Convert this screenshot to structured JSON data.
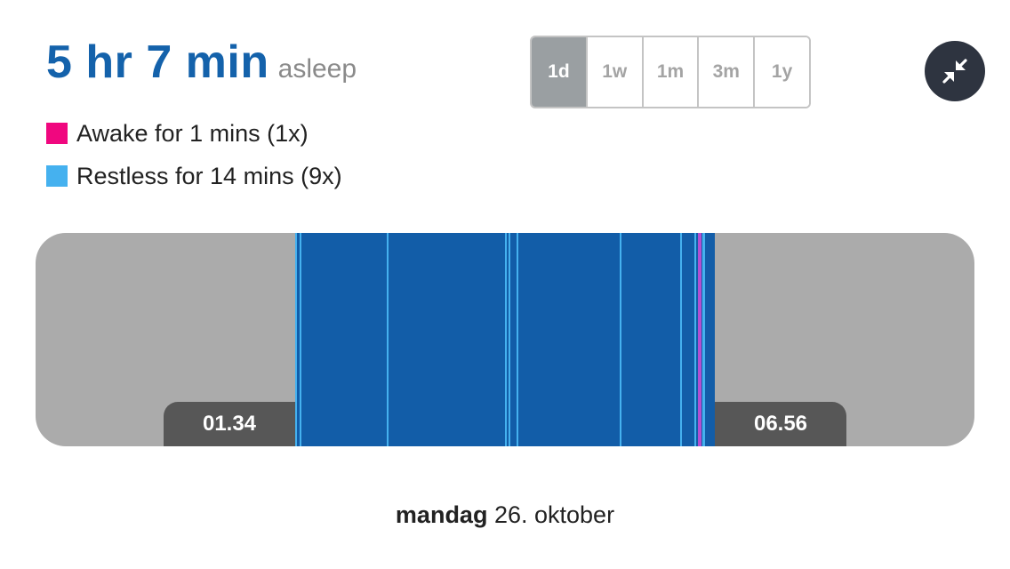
{
  "summary": {
    "duration": "5 hr 7 min",
    "state_label": "asleep"
  },
  "legend": [
    {
      "label": "Awake for 1 mins (1x)",
      "color": "#f0077f"
    },
    {
      "label": "Restless for 14 mins (9x)",
      "color": "#45b1ef"
    }
  ],
  "range_selector": {
    "options": [
      "1d",
      "1w",
      "1m",
      "3m",
      "1y"
    ],
    "selected": "1d"
  },
  "collapse_button": {
    "icon": "collapse-arrows-icon"
  },
  "sleep_chart": {
    "start_time": "01.34",
    "end_time": "06.56",
    "colors": {
      "asleep": "#125da8",
      "restless": "#45b1ef",
      "awake": "#f0077f",
      "background": "#ababab"
    }
  },
  "date": {
    "weekday": "mandag",
    "rest": "26. oktober"
  }
}
